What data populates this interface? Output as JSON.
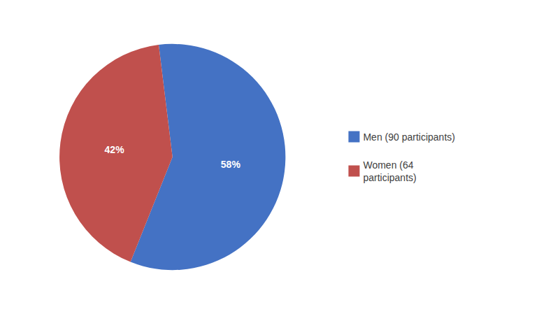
{
  "chart_data": {
    "type": "pie",
    "categories": [
      "Men (90 participants)",
      "Women (64\nparticipants)"
    ],
    "values": [
      58,
      42
    ],
    "value_labels": [
      "58%",
      "42%"
    ],
    "colors": [
      "#4472C4",
      "#C0504D"
    ],
    "data_labels": true,
    "legend": "right"
  }
}
